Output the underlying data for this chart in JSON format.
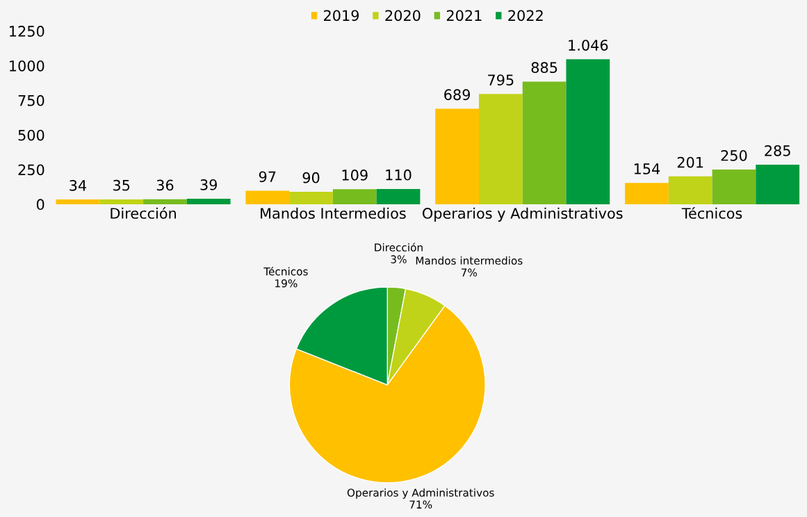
{
  "chart_data": [
    {
      "type": "bar",
      "categories": [
        "Dirección",
        "Mandos Intermedios",
        "Operarios y Administrativos",
        "Técnicos"
      ],
      "series": [
        {
          "name": "2019",
          "color": "#ffc000",
          "values": [
            34,
            97,
            689,
            154
          ],
          "value_labels": [
            "34",
            "97",
            "689",
            "154"
          ]
        },
        {
          "name": "2020",
          "color": "#c0d318",
          "values": [
            35,
            90,
            795,
            201
          ],
          "value_labels": [
            "35",
            "90",
            "795",
            "201"
          ]
        },
        {
          "name": "2021",
          "color": "#77bc1f",
          "values": [
            36,
            109,
            885,
            250
          ],
          "value_labels": [
            "36",
            "109",
            "885",
            "250"
          ]
        },
        {
          "name": "2022",
          "color": "#009a3e",
          "values": [
            39,
            110,
            1046,
            285
          ],
          "value_labels": [
            "39",
            "110",
            "1.046",
            "285"
          ]
        }
      ],
      "ylim": [
        0,
        1250
      ],
      "yticks": [
        0,
        250,
        500,
        750,
        1000,
        1250
      ],
      "grid": false,
      "legend": "top"
    },
    {
      "type": "pie",
      "categories": [
        "Dirección",
        "Mandos intermedios",
        "Operarios y Administrativos",
        "Técnicos"
      ],
      "values": [
        3,
        7,
        71,
        19
      ],
      "value_labels": [
        "3%",
        "7%",
        "71%",
        "19%"
      ],
      "colors": [
        "#77bc1f",
        "#c0d318",
        "#ffc000",
        "#009a3e"
      ]
    }
  ]
}
